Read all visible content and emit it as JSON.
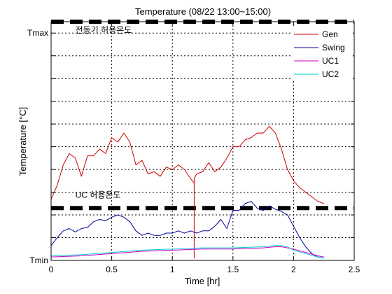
{
  "chart_data": {
    "type": "line",
    "title": "Temperature (08/22 13:00~15:00)",
    "xlabel": "Time [hr]",
    "ylabel": "Temperature [°C]",
    "xlim": [
      0,
      2.5
    ],
    "ylim": [
      0,
      10.5
    ],
    "grid": true,
    "legend_position": "top-right",
    "xticks": [
      {
        "value": 0,
        "label": "0"
      },
      {
        "value": 0.5,
        "label": "0.5"
      },
      {
        "value": 1,
        "label": "1"
      },
      {
        "value": 1.5,
        "label": "1.5"
      },
      {
        "value": 2,
        "label": "2"
      },
      {
        "value": 2.5,
        "label": "2.5"
      }
    ],
    "yticks": [
      {
        "value": 0,
        "label": "Tmin"
      },
      {
        "value": 1,
        "label": ""
      },
      {
        "value": 2,
        "label": ""
      },
      {
        "value": 3,
        "label": ""
      },
      {
        "value": 4,
        "label": ""
      },
      {
        "value": 5,
        "label": ""
      },
      {
        "value": 6,
        "label": ""
      },
      {
        "value": 7,
        "label": ""
      },
      {
        "value": 8,
        "label": ""
      },
      {
        "value": 9,
        "label": ""
      },
      {
        "value": 10,
        "label": "Tmax"
      }
    ],
    "limits": [
      {
        "name": "전동기 허용온도",
        "value": 10.5,
        "style": "thick-dashed",
        "color": "#000000"
      },
      {
        "name": "UC 허용온도",
        "value": 2.3,
        "style": "thick-dashed",
        "color": "#000000"
      }
    ],
    "annotations": [
      {
        "text": "전동기 허용온도",
        "x": 0.2,
        "y": 10
      },
      {
        "text": "UC 허용온도",
        "x": 0.2,
        "y": 2.75
      }
    ],
    "series": [
      {
        "name": "Gen",
        "color": "#cc0000",
        "x": [
          0,
          0.05,
          0.1,
          0.15,
          0.2,
          0.25,
          0.3,
          0.35,
          0.4,
          0.45,
          0.5,
          0.55,
          0.6,
          0.65,
          0.7,
          0.75,
          0.8,
          0.85,
          0.9,
          0.95,
          1.0,
          1.05,
          1.1,
          1.15,
          1.18,
          1.18,
          1.18,
          1.2,
          1.25,
          1.3,
          1.35,
          1.4,
          1.45,
          1.5,
          1.55,
          1.6,
          1.65,
          1.7,
          1.75,
          1.8,
          1.85,
          1.9,
          1.95,
          2.0,
          2.05,
          2.1,
          2.15,
          2.2,
          2.25
        ],
        "values": [
          2.7,
          3.3,
          4.2,
          4.7,
          4.5,
          3.7,
          4.6,
          4.6,
          4.9,
          4.7,
          5.4,
          5.2,
          5.6,
          5.2,
          4.2,
          4.4,
          3.8,
          3.9,
          3.7,
          4.1,
          4.0,
          4.2,
          4.0,
          3.6,
          3.4,
          0.1,
          3.6,
          3.8,
          3.9,
          4.3,
          3.9,
          4.1,
          4.5,
          5.0,
          5.0,
          5.3,
          5.4,
          5.6,
          5.6,
          5.9,
          5.6,
          4.9,
          4.0,
          3.5,
          3.2,
          3.0,
          2.8,
          2.6,
          2.5
        ]
      },
      {
        "name": "Swing",
        "color": "#000099",
        "x": [
          0,
          0.05,
          0.1,
          0.15,
          0.2,
          0.25,
          0.3,
          0.35,
          0.4,
          0.45,
          0.5,
          0.55,
          0.6,
          0.65,
          0.7,
          0.75,
          0.8,
          0.85,
          0.9,
          0.95,
          1.0,
          1.05,
          1.1,
          1.15,
          1.2,
          1.25,
          1.3,
          1.35,
          1.4,
          1.45,
          1.5,
          1.55,
          1.6,
          1.65,
          1.7,
          1.75,
          1.8,
          1.85,
          1.9,
          1.95,
          2.0,
          2.05,
          2.1,
          2.15,
          2.2,
          2.25
        ],
        "values": [
          0.65,
          1.0,
          1.3,
          1.4,
          1.25,
          1.4,
          1.45,
          1.7,
          1.8,
          1.75,
          1.9,
          2.0,
          1.9,
          1.7,
          1.3,
          1.1,
          1.2,
          1.1,
          1.1,
          1.2,
          1.2,
          1.3,
          1.2,
          1.3,
          1.2,
          1.3,
          1.3,
          1.5,
          1.8,
          1.4,
          2.2,
          2.2,
          2.5,
          2.6,
          2.3,
          2.2,
          2.4,
          2.25,
          2.15,
          2.0,
          1.5,
          1.0,
          0.6,
          0.3,
          0.15,
          0.1
        ]
      },
      {
        "name": "UC1",
        "color": "#cc00cc",
        "x": [
          0,
          0.25,
          0.5,
          0.75,
          1.0,
          1.25,
          1.5,
          1.75,
          1.85,
          1.9,
          1.95,
          2.0,
          2.1,
          2.2,
          2.25
        ],
        "values": [
          0.15,
          0.2,
          0.3,
          0.4,
          0.45,
          0.5,
          0.5,
          0.55,
          0.6,
          0.6,
          0.55,
          0.5,
          0.35,
          0.2,
          0.15
        ]
      },
      {
        "name": "UC2",
        "color": "#00cccc",
        "x": [
          0,
          0.25,
          0.5,
          0.75,
          1.0,
          1.25,
          1.5,
          1.75,
          1.85,
          1.9,
          1.95,
          2.0,
          2.1,
          2.2,
          2.25
        ],
        "values": [
          0.2,
          0.25,
          0.35,
          0.45,
          0.5,
          0.55,
          0.55,
          0.6,
          0.65,
          0.65,
          0.6,
          0.45,
          0.3,
          0.15,
          0.1
        ]
      }
    ]
  }
}
